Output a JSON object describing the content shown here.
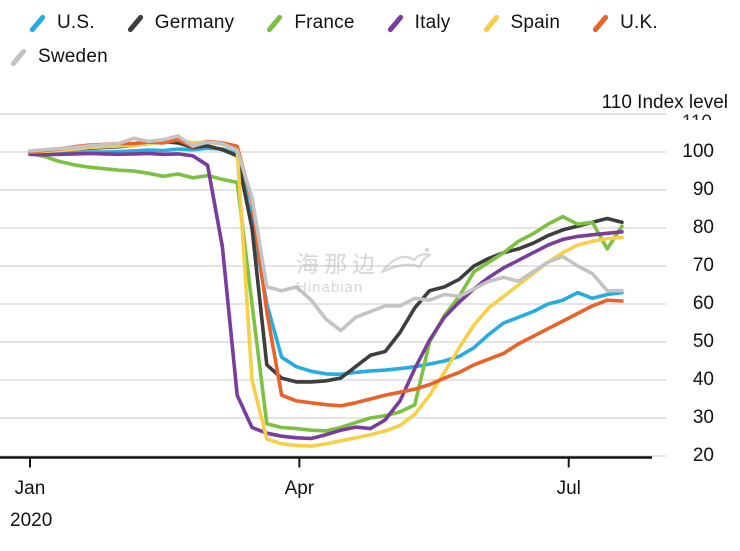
{
  "watermark": {
    "cjk": "海那边",
    "latin": "Hinabian"
  },
  "chart_data": {
    "type": "line",
    "title": "",
    "y_axis_top_label": "110 Index level",
    "ylabel": "Index level",
    "ylim": [
      20,
      110
    ],
    "y_ticks": [
      110,
      100,
      90,
      80,
      70,
      60,
      50,
      40,
      30,
      20
    ],
    "y_tick_labels_shown": [
      100,
      90,
      80,
      70,
      60,
      50,
      40,
      30,
      20
    ],
    "top_tick_value": "110",
    "grid": true,
    "legend_position": "top-left",
    "x_axis": {
      "year": "2020",
      "tick_labels": [
        "Jan",
        "Apr",
        "Jul"
      ],
      "tick_days": [
        0,
        91,
        182
      ],
      "start_date": "Jan 1, 2020",
      "end_date": "Jul 19, 2020",
      "sample_interval_days": 5
    },
    "series": [
      {
        "name": "U.S.",
        "color": "#27ACE0",
        "values": [
          99.8,
          99.6,
          99.7,
          99.8,
          100.0,
          100.0,
          100.1,
          100.3,
          100.5,
          100.4,
          100.8,
          100.6,
          101.0,
          100.8,
          99.5,
          82,
          60,
          46,
          43.5,
          42.3,
          41.6,
          41.5,
          42.0,
          42.4,
          42.6,
          43.0,
          43.5,
          44.2,
          45.0,
          46.2,
          48.5,
          52,
          55,
          56.5,
          58,
          60,
          61,
          63,
          61.5,
          62.5,
          63
        ]
      },
      {
        "name": "Germany",
        "color": "#3E3E3E",
        "values": [
          100.2,
          100.4,
          100.6,
          100.8,
          101.0,
          101.2,
          101.4,
          101.8,
          102.2,
          102.8,
          102.4,
          101.2,
          101.6,
          100.6,
          99.0,
          80,
          44,
          40.5,
          39.5,
          39.5,
          39.8,
          40.5,
          43.5,
          46.5,
          47.5,
          52.5,
          59,
          63.5,
          64.5,
          66.5,
          70,
          72,
          73.5,
          74.5,
          76,
          78,
          79.5,
          80.5,
          81.5,
          82.5,
          81.5
        ]
      },
      {
        "name": "France",
        "color": "#7DC142",
        "values": [
          99.6,
          98.8,
          97.5,
          96.6,
          96.0,
          95.6,
          95.2,
          95.0,
          94.4,
          93.6,
          94.2,
          93.2,
          93.8,
          92.8,
          92.0,
          60,
          28.5,
          27.5,
          27.2,
          26.8,
          26.6,
          27.5,
          28.8,
          30.0,
          30.6,
          31.6,
          33.5,
          50,
          57,
          62,
          68.5,
          71,
          73.5,
          76.5,
          78.5,
          81,
          83,
          81,
          81.5,
          74.5,
          80.5
        ]
      },
      {
        "name": "Italy",
        "color": "#7A3D9B",
        "values": [
          99.4,
          99.3,
          99.4,
          99.5,
          99.6,
          99.5,
          99.4,
          99.5,
          99.6,
          99.4,
          99.5,
          99.0,
          96.5,
          75,
          36,
          27.5,
          26,
          25.2,
          24.8,
          24.6,
          25.6,
          26.8,
          27.6,
          27.2,
          29.5,
          34.5,
          43,
          50.5,
          56.5,
          60.5,
          64,
          67,
          69.5,
          71.5,
          73.5,
          75.5,
          77,
          77.8,
          78.2,
          78.6,
          79
        ]
      },
      {
        "name": "Spain",
        "color": "#F6D049",
        "values": [
          100.0,
          100.2,
          100.4,
          100.8,
          101.2,
          101.4,
          101.6,
          101.8,
          102.2,
          102.6,
          103.2,
          102.4,
          102.6,
          102.0,
          100.5,
          40,
          24.5,
          23.2,
          22.8,
          22.6,
          23.2,
          24.0,
          24.8,
          25.6,
          26.6,
          28.0,
          31,
          36,
          42,
          48.5,
          54.5,
          59,
          62,
          65,
          68,
          71,
          73.5,
          75.5,
          76.5,
          77.2,
          77.5
        ]
      },
      {
        "name": "U.K.",
        "color": "#E96227",
        "values": [
          100.0,
          100.4,
          100.8,
          101.4,
          101.8,
          102.0,
          102.2,
          102.2,
          102.6,
          102.4,
          103.2,
          101.4,
          102.8,
          102.4,
          101.5,
          87,
          58,
          36,
          34.5,
          34.0,
          33.5,
          33.2,
          34.0,
          35.0,
          36.0,
          36.8,
          37.6,
          38.8,
          40.5,
          42.0,
          44.0,
          45.5,
          47.0,
          49.5,
          51.5,
          53.5,
          55.5,
          57.5,
          59.5,
          61.0,
          60.8
        ]
      },
      {
        "name": "Sweden",
        "color": "#C3C3C3",
        "values": [
          100.3,
          100.6,
          100.9,
          101.2,
          101.6,
          101.9,
          102.2,
          103.6,
          102.8,
          103.2,
          104.2,
          101.6,
          102.6,
          102.2,
          100.5,
          88,
          64.5,
          63.5,
          64.5,
          61,
          56,
          53,
          56.5,
          58,
          59.5,
          59.5,
          61.5,
          61,
          62.5,
          62,
          64,
          66,
          67,
          66,
          68.5,
          71,
          72.5,
          70,
          68,
          63.5,
          63.5
        ]
      }
    ],
    "style": {
      "gridline_color": "#DBDBDB",
      "axis_color": "#141414",
      "text_color": "#121212"
    }
  }
}
